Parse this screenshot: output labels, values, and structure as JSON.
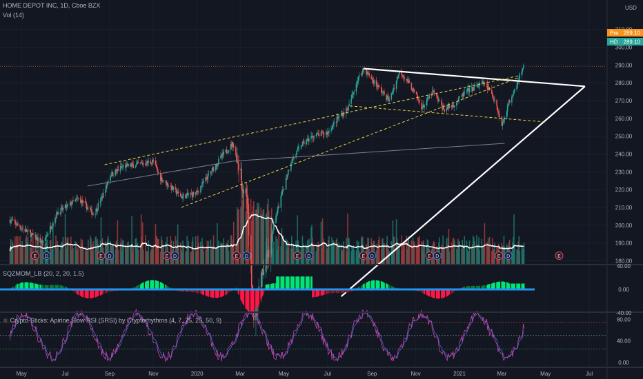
{
  "header": {
    "title": "HOME DEPOT INC, 1D, Cboe BZX",
    "vol_label": "Vol (14)",
    "currency": "USD"
  },
  "indicators": {
    "sqzmom_label": "SQZMOM_LB (20, 2, 20, 1.5)",
    "srsi_label": "Crypto-Sticks: Apirine Slow RSI (SRSI) by Cryptorhythms (4, 7, 75, 25, 50, 9)"
  },
  "badges": {
    "pre_label": "Pre",
    "pre_value": "289.10",
    "hd_label": "HD",
    "hd_value": "289.10"
  },
  "colors": {
    "background": "#131722",
    "up": "#26a69a",
    "down": "#ef5350",
    "trend_white": "#ffffff",
    "trend_yellow": "#e8d44a",
    "pre_badge": "#f7931a",
    "hd_badge": "#26a69a",
    "mom_green": "#00e676",
    "mom_red": "#ff1744",
    "mom_zero": "#2196f3",
    "rsi_fast": "#cc44aa",
    "rsi_slow": "#3f6fd8"
  },
  "chart_data": [
    {
      "type": "candlestick",
      "title": "HOME DEPOT INC, 1D, Cboe BZX",
      "ylabel": "USD",
      "ylim": [
        175,
        310
      ],
      "y_ticks": [
        "180.00",
        "190.00",
        "200.00",
        "210.00",
        "220.00",
        "230.00",
        "240.00",
        "250.00",
        "260.00",
        "270.00",
        "280.00",
        "290.00",
        "300.00",
        "310.00"
      ],
      "x_ticks": [
        "May",
        "Jul",
        "Sep",
        "Nov",
        "2020",
        "Mar",
        "May",
        "Jul",
        "Sep",
        "Nov",
        "2021",
        "Mar",
        "May",
        "Jul"
      ],
      "price_path": [
        {
          "t": "2019-04-15",
          "v": 203
        },
        {
          "t": "2019-05-10",
          "v": 196
        },
        {
          "t": "2019-05-31",
          "v": 190
        },
        {
          "t": "2019-06-20",
          "v": 207
        },
        {
          "t": "2019-07-20",
          "v": 215
        },
        {
          "t": "2019-08-10",
          "v": 206
        },
        {
          "t": "2019-08-25",
          "v": 219
        },
        {
          "t": "2019-09-01",
          "v": 228
        },
        {
          "t": "2019-09-20",
          "v": 233
        },
        {
          "t": "2019-10-10",
          "v": 234
        },
        {
          "t": "2019-11-01",
          "v": 236
        },
        {
          "t": "2019-11-10",
          "v": 227
        },
        {
          "t": "2019-12-10",
          "v": 216
        },
        {
          "t": "2019-12-31",
          "v": 218
        },
        {
          "t": "2020-01-15",
          "v": 227
        },
        {
          "t": "2020-02-05",
          "v": 239
        },
        {
          "t": "2020-02-20",
          "v": 246
        },
        {
          "t": "2020-02-28",
          "v": 232
        },
        {
          "t": "2020-03-10",
          "v": 215
        },
        {
          "t": "2020-03-20",
          "v": 150
        },
        {
          "t": "2020-04-05",
          "v": 178
        },
        {
          "t": "2020-04-20",
          "v": 205
        },
        {
          "t": "2020-05-10",
          "v": 235
        },
        {
          "t": "2020-05-25",
          "v": 245
        },
        {
          "t": "2020-06-10",
          "v": 250
        },
        {
          "t": "2020-07-01",
          "v": 252
        },
        {
          "t": "2020-07-15",
          "v": 260
        },
        {
          "t": "2020-07-30",
          "v": 266
        },
        {
          "t": "2020-08-10",
          "v": 280
        },
        {
          "t": "2020-08-20",
          "v": 288
        },
        {
          "t": "2020-09-05",
          "v": 280
        },
        {
          "t": "2020-09-25",
          "v": 270
        },
        {
          "t": "2020-10-10",
          "v": 287
        },
        {
          "t": "2020-10-25",
          "v": 278
        },
        {
          "t": "2020-11-10",
          "v": 266
        },
        {
          "t": "2020-11-25",
          "v": 275
        },
        {
          "t": "2020-12-10",
          "v": 265
        },
        {
          "t": "2020-12-25",
          "v": 268
        },
        {
          "t": "2021-01-10",
          "v": 275
        },
        {
          "t": "2021-01-25",
          "v": 278
        },
        {
          "t": "2021-02-05",
          "v": 280
        },
        {
          "t": "2021-02-20",
          "v": 270
        },
        {
          "t": "2021-03-01",
          "v": 256
        },
        {
          "t": "2021-03-10",
          "v": 268
        },
        {
          "t": "2021-03-25",
          "v": 283
        },
        {
          "t": "2021-04-01",
          "v": 289
        }
      ],
      "last_price": 289.1,
      "trendlines": [
        {
          "name": "triangle-top",
          "style": "solid",
          "color": "#ffffff",
          "from": {
            "t": "2020-08-20",
            "v": 288
          },
          "to": {
            "t": "2021-06-25",
            "v": 278
          }
        },
        {
          "name": "triangle-bottom",
          "style": "solid",
          "color": "#ffffff",
          "from": {
            "t": "2020-07-20",
            "v": 160
          },
          "to": {
            "t": "2021-06-25",
            "v": 278
          }
        },
        {
          "name": "channel-upper",
          "style": "dashed",
          "color": "#e8d44a",
          "from": {
            "t": "2019-08-25",
            "v": 234
          },
          "to": {
            "t": "2021-03-25",
            "v": 284
          }
        },
        {
          "name": "channel-lower",
          "style": "dashed",
          "color": "#e8d44a",
          "from": {
            "t": "2019-12-10",
            "v": 210
          },
          "to": {
            "t": "2021-03-25",
            "v": 283
          }
        },
        {
          "name": "support-dashed",
          "style": "dashed",
          "color": "#e8d44a",
          "from": {
            "t": "2020-08-01",
            "v": 267
          },
          "to": {
            "t": "2021-05-01",
            "v": 258
          }
        },
        {
          "name": "thin-gray-1",
          "style": "solid",
          "color": "#7a7f8f",
          "from": {
            "t": "2019-08-01",
            "v": 222
          },
          "to": {
            "t": "2020-02-20",
            "v": 236
          }
        },
        {
          "name": "thin-gray-2",
          "style": "solid",
          "color": "#7a7f8f",
          "from": {
            "t": "2020-02-20",
            "v": 236
          },
          "to": {
            "t": "2021-03-05",
            "v": 246
          }
        }
      ],
      "volume_ma": "white line overlay",
      "event_markers": [
        {
          "t": "2019-05-20",
          "kind": "E"
        },
        {
          "t": "2019-06-05",
          "kind": "D"
        },
        {
          "t": "2019-08-20",
          "kind": "E"
        },
        {
          "t": "2019-09-01",
          "kind": "D"
        },
        {
          "t": "2019-11-20",
          "kind": "E"
        },
        {
          "t": "2019-12-01",
          "kind": "D"
        },
        {
          "t": "2020-02-25",
          "kind": "E"
        },
        {
          "t": "2020-03-10",
          "kind": "D"
        },
        {
          "t": "2020-05-20",
          "kind": "E"
        },
        {
          "t": "2020-06-05",
          "kind": "D"
        },
        {
          "t": "2020-08-20",
          "kind": "E"
        },
        {
          "t": "2020-09-01",
          "kind": "D"
        },
        {
          "t": "2020-11-20",
          "kind": "E"
        },
        {
          "t": "2020-12-01",
          "kind": "D"
        },
        {
          "t": "2021-02-25",
          "kind": "E"
        },
        {
          "t": "2021-03-10",
          "kind": "D"
        },
        {
          "t": "2021-05-20",
          "kind": "E"
        }
      ]
    },
    {
      "type": "bar",
      "title": "SQZMOM_LB (20, 2, 20, 1.5)",
      "ylim": [
        -45,
        45
      ],
      "y_ticks": [
        "40.00",
        "0.00",
        "-40.00"
      ],
      "bars": "green above zero, red below zero; zero line dots blue"
    },
    {
      "type": "line",
      "title": "Crypto-Sticks: Apirine Slow RSI (SRSI) by Cryptorhythms (4, 7, 75, 25, 50, 9)",
      "ylim": [
        0,
        100
      ],
      "y_ticks": [
        "80.00",
        "40.00",
        "0.00"
      ],
      "levels": [
        75,
        50,
        25
      ]
    }
  ]
}
